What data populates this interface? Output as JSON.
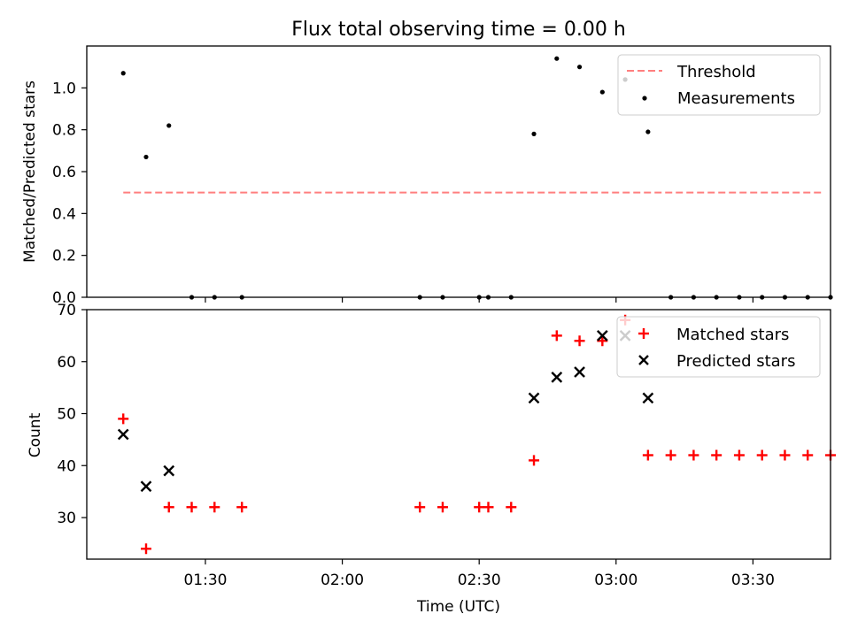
{
  "chart_data": [
    {
      "type": "scatter",
      "title": "Flux total observing time = 0.00 h",
      "xlabel": "",
      "ylabel": "Matched/Predicted stars",
      "x_is_time": true,
      "xlim": [
        "01:04",
        "03:47"
      ],
      "ylim": [
        0,
        1.2
      ],
      "yticks": [
        0.0,
        0.2,
        0.4,
        0.6,
        0.8,
        1.0
      ],
      "ytick_labels": [
        "0.0",
        "0.2",
        "0.4",
        "0.6",
        "0.8",
        "1.0"
      ],
      "grid": false,
      "legend_position": "top-right",
      "series": [
        {
          "name": "Threshold",
          "kind": "dashed-line",
          "color": "#ff7f7f",
          "x": [
            "01:12",
            "03:45"
          ],
          "y": [
            0.5,
            0.5
          ]
        },
        {
          "name": "Measurements",
          "kind": "dot",
          "color": "#000000",
          "x": [
            "01:12",
            "01:17",
            "01:22",
            "01:27",
            "01:32",
            "01:38",
            "02:17",
            "02:22",
            "02:30",
            "02:32",
            "02:37",
            "02:42",
            "02:47",
            "02:52",
            "02:57",
            "03:02",
            "03:07",
            "03:12",
            "03:17",
            "03:22",
            "03:27",
            "03:32",
            "03:37",
            "03:42",
            "03:47"
          ],
          "y": [
            1.07,
            0.67,
            0.82,
            0.0,
            0.0,
            0.0,
            0.0,
            0.0,
            0.0,
            0.0,
            0.0,
            0.78,
            1.14,
            1.1,
            0.98,
            1.04,
            0.79,
            0.0,
            0.0,
            0.0,
            0.0,
            0.0,
            0.0,
            0.0,
            0.0
          ]
        }
      ]
    },
    {
      "type": "scatter",
      "title": "",
      "xlabel": "Time (UTC)",
      "ylabel": "Count",
      "x_is_time": true,
      "xlim": [
        "01:04",
        "03:47"
      ],
      "ylim": [
        22,
        70
      ],
      "xticks": [
        "01:30",
        "02:00",
        "02:30",
        "03:00",
        "03:30"
      ],
      "yticks": [
        30,
        40,
        50,
        60,
        70
      ],
      "ytick_labels": [
        "30",
        "40",
        "50",
        "60",
        "70"
      ],
      "grid": false,
      "legend_position": "top-right",
      "series": [
        {
          "name": "Matched stars",
          "kind": "plus",
          "color": "#ff0000",
          "x": [
            "01:12",
            "01:17",
            "01:22",
            "01:27",
            "01:32",
            "01:38",
            "02:17",
            "02:22",
            "02:30",
            "02:32",
            "02:37",
            "02:42",
            "02:47",
            "02:52",
            "02:57",
            "03:02",
            "03:07",
            "03:12",
            "03:17",
            "03:22",
            "03:27",
            "03:32",
            "03:37",
            "03:42",
            "03:47"
          ],
          "y": [
            49,
            24,
            32,
            32,
            32,
            32,
            32,
            32,
            32,
            32,
            32,
            41,
            65,
            64,
            64,
            68,
            42,
            42,
            42,
            42,
            42,
            42,
            42,
            42,
            42
          ]
        },
        {
          "name": "Predicted stars",
          "kind": "x",
          "color": "#000000",
          "x": [
            "01:12",
            "01:17",
            "01:22",
            "02:42",
            "02:47",
            "02:52",
            "02:57",
            "03:02",
            "03:07"
          ],
          "y": [
            46,
            36,
            39,
            53,
            57,
            58,
            65,
            65,
            53
          ]
        }
      ]
    }
  ]
}
